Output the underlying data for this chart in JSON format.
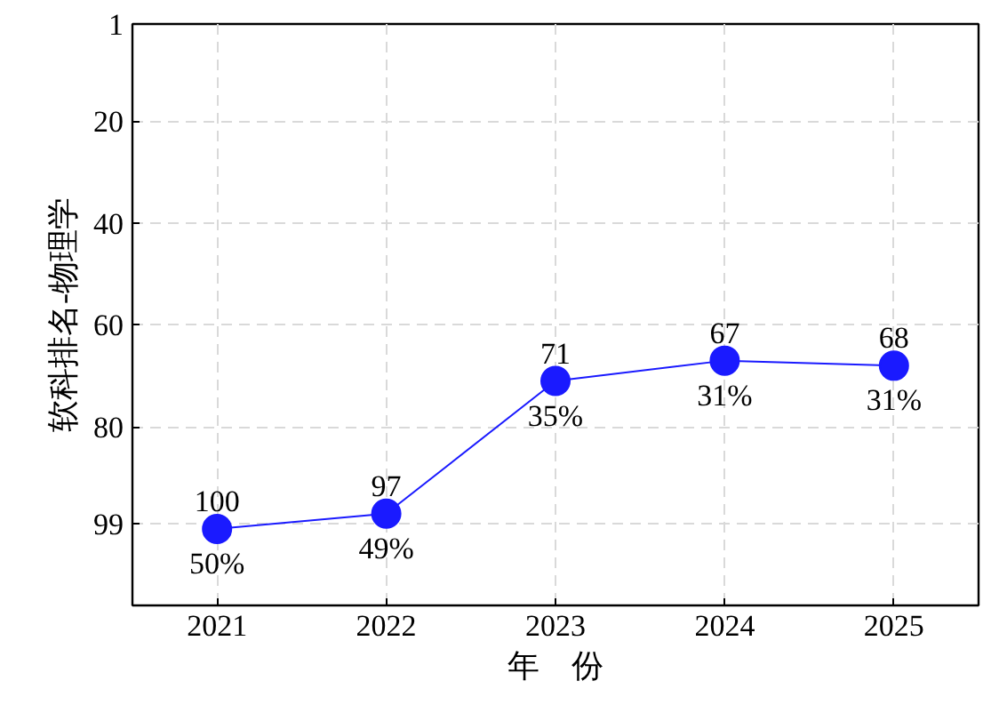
{
  "chart_data": {
    "type": "line",
    "xlabel": "年　份",
    "ylabel": "软科排名-物理学",
    "x": [
      2021,
      2022,
      2023,
      2024,
      2025
    ],
    "series": [
      {
        "color": "#1a1aff",
        "values": [
          100,
          97,
          71,
          67,
          68
        ]
      }
    ],
    "xlim": [
      2020.5,
      2025.5
    ],
    "ylim": [
      115,
      1
    ],
    "xticks": [
      2021,
      2022,
      2023,
      2024,
      2025
    ],
    "yticks": [
      1,
      20,
      40,
      60,
      80,
      99
    ],
    "grid": true,
    "marker": "circle",
    "line_style": "solid",
    "data_labels": true,
    "annotations": [
      {
        "text": "50%",
        "x": 2021,
        "y": 100
      },
      {
        "text": "49%",
        "x": 2022,
        "y": 97
      },
      {
        "text": "35%",
        "x": 2023,
        "y": 71
      },
      {
        "text": "31%",
        "x": 2024,
        "y": 67
      },
      {
        "text": "31%",
        "x": 2025,
        "y": 68
      }
    ]
  }
}
